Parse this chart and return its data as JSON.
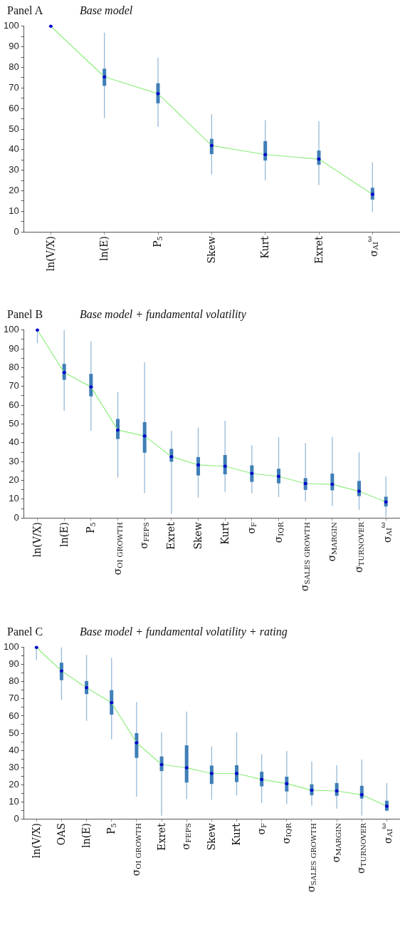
{
  "chart_data": [
    {
      "type": "box",
      "title": "Panel A",
      "subtitle": "Base model",
      "categories": [
        "ln(V/X)",
        "ln(E)",
        "P$_{5}$",
        "Skew",
        "Kurt",
        "Exret",
        "σ$_{AI}$$^{ω}$"
      ],
      "color": "#3f7fb7",
      "boxes": [
        {
          "low": 100,
          "q1": 100,
          "median": 100,
          "q3": 100,
          "high": 100
        },
        {
          "low": 55.4,
          "q1": 71.2,
          "median": 75.4,
          "q3": 79.2,
          "high": 96.9
        },
        {
          "low": 51.1,
          "q1": 62.7,
          "median": 67.2,
          "q3": 72.1,
          "high": 84.8
        },
        {
          "low": 27.9,
          "q1": 38.0,
          "median": 42.0,
          "q3": 45.1,
          "high": 57.2
        },
        {
          "low": 25.0,
          "q1": 34.9,
          "median": 37.6,
          "q3": 44.0,
          "high": 54.3
        },
        {
          "low": 22.8,
          "q1": 32.8,
          "median": 35.4,
          "q3": 39.4,
          "high": 53.8
        },
        {
          "low": 9.7,
          "q1": 15.9,
          "median": 18.3,
          "q3": 21.3,
          "high": 33.9
        }
      ],
      "series": [
        {
          "type": "line",
          "color": "#90ee80",
          "values": [
            100,
            75.4,
            67.2,
            42.0,
            37.6,
            35.4,
            18.3
          ]
        }
      ],
      "ylim": [
        0,
        100
      ],
      "yticks": [
        0,
        {
          "value": 5,
          "label": null
        },
        10,
        {
          "value": 15,
          "label": null
        },
        20,
        {
          "value": 25,
          "label": null
        },
        30,
        {
          "value": 35,
          "label": null
        },
        40,
        {
          "value": 45,
          "label": null
        },
        50,
        {
          "value": 55,
          "label": null
        },
        60,
        {
          "value": 65,
          "label": null
        },
        70,
        {
          "value": 75,
          "label": null
        },
        80,
        {
          "value": 85,
          "label": null
        },
        90,
        {
          "value": 95,
          "label": null
        },
        100
      ],
      "grid": false,
      "legend": false
    },
    {
      "type": "box",
      "title": "Panel B",
      "subtitle": "Base model + fundamental volatility",
      "categories": [
        "ln(V/X)",
        "ln(E)",
        "P$_{5}$",
        "σ$_{OI GROWTH}$",
        "σ$_{FEPS}$",
        "Exret",
        "Skew",
        "Kurt",
        "σ$_{F}$",
        "σ$_{IQR}$",
        "σ$_{SALES GROWTH}$",
        "σ$_{MARGIN}$",
        "σ$_{TURNOVER}$",
        "σ$_{AI}$$^{ω}$"
      ],
      "color": "#3f7fb7",
      "boxes": [
        {
          "low": 93.0,
          "q1": 100,
          "median": 100,
          "q3": 100,
          "high": 100
        },
        {
          "low": 56.9,
          "q1": 73.7,
          "median": 77.4,
          "q3": 81.8,
          "high": 100
        },
        {
          "low": 46.4,
          "q1": 64.9,
          "median": 69.7,
          "q3": 76.5,
          "high": 93.9
        },
        {
          "low": 21.5,
          "q1": 42.2,
          "median": 46.8,
          "q3": 52.5,
          "high": 66.9
        },
        {
          "low": 13.3,
          "q1": 34.9,
          "median": 43.6,
          "q3": 50.8,
          "high": 82.8
        },
        {
          "low": 2.1,
          "q1": 30.1,
          "median": 32.6,
          "q3": 36.6,
          "high": 46.4
        },
        {
          "low": 10.9,
          "q1": 22.8,
          "median": 28.2,
          "q3": 32.2,
          "high": 48.1
        },
        {
          "low": 13.8,
          "q1": 23.4,
          "median": 27.5,
          "q3": 33.3,
          "high": 51.7
        },
        {
          "low": 13.1,
          "q1": 19.4,
          "median": 23.7,
          "q3": 27.8,
          "high": 38.7
        },
        {
          "low": 11.1,
          "q1": 18.6,
          "median": 22.1,
          "q3": 26.0,
          "high": 42.9
        },
        {
          "low": 8.7,
          "q1": 15.1,
          "median": 18.3,
          "q3": 21.0,
          "high": 39.8
        },
        {
          "low": 6.3,
          "q1": 14.9,
          "median": 17.9,
          "q3": 23.4,
          "high": 43.1
        },
        {
          "low": 4.4,
          "q1": 11.8,
          "median": 14.2,
          "q3": 19.5,
          "high": 34.9
        },
        {
          "low": 0.5,
          "q1": 6.3,
          "median": 8.5,
          "q3": 11.1,
          "high": 22.0
        }
      ],
      "series": [
        {
          "type": "line",
          "color": "#90ee80",
          "values": [
            100,
            77.4,
            69.7,
            46.8,
            43.6,
            32.6,
            28.2,
            27.5,
            23.7,
            22.1,
            18.3,
            17.9,
            14.2,
            8.5
          ]
        }
      ],
      "ylim": [
        0,
        100
      ],
      "yticks": [
        0,
        {
          "value": 5,
          "label": null
        },
        10,
        {
          "value": 15,
          "label": null
        },
        20,
        {
          "value": 25,
          "label": null
        },
        30,
        {
          "value": 35,
          "label": null
        },
        40,
        {
          "value": 45,
          "label": null
        },
        50,
        {
          "value": 55,
          "label": null
        },
        60,
        {
          "value": 65,
          "label": null
        },
        70,
        {
          "value": 75,
          "label": null
        },
        80,
        {
          "value": 85,
          "label": null
        },
        90,
        {
          "value": 95,
          "label": null
        },
        100
      ],
      "grid": false,
      "legend": false
    },
    {
      "type": "box",
      "title": "Panel C",
      "subtitle": "Base model + fundamental volatility + rating",
      "categories": [
        "ln(V/X)",
        "OAS",
        "ln(E)",
        "P$_{5}$",
        "σ$_{OI GROWTH}$",
        "Exret",
        "σ$_{FEPS}$",
        "Skew",
        "Kurt",
        "σ$_{F}$",
        "σ$_{IQR}$",
        "σ$_{SALES GROWTH}$",
        "σ$_{MARGIN}$",
        "σ$_{TURNOVER}$",
        "σ$_{AI}$$^{ω}$"
      ],
      "color": "#3f7fb7",
      "boxes": [
        {
          "low": 92.6,
          "q1": 100,
          "median": 100,
          "q3": 100,
          "high": 100
        },
        {
          "low": 69.3,
          "q1": 81.1,
          "median": 86.3,
          "q3": 90.9,
          "high": 100
        },
        {
          "low": 57.2,
          "q1": 73.0,
          "median": 76.5,
          "q3": 80.2,
          "high": 95.7
        },
        {
          "low": 46.5,
          "q1": 61.0,
          "median": 67.8,
          "q3": 74.9,
          "high": 94.0
        },
        {
          "low": 13.0,
          "q1": 35.8,
          "median": 44.4,
          "q3": 49.8,
          "high": 68.2
        },
        {
          "low": 1.9,
          "q1": 28.1,
          "median": 31.7,
          "q3": 36.2,
          "high": 50.5
        },
        {
          "low": 11.5,
          "q1": 21.4,
          "median": 29.8,
          "q3": 42.7,
          "high": 62.6
        },
        {
          "low": 11.2,
          "q1": 20.6,
          "median": 26.5,
          "q3": 30.9,
          "high": 42.3
        },
        {
          "low": 13.7,
          "q1": 21.7,
          "median": 26.5,
          "q3": 31.1,
          "high": 50.5
        },
        {
          "low": 9.3,
          "q1": 19.2,
          "median": 23.0,
          "q3": 27.3,
          "high": 37.7
        },
        {
          "low": 8.6,
          "q1": 16.2,
          "median": 20.6,
          "q3": 24.4,
          "high": 39.6
        },
        {
          "low": 7.7,
          "q1": 14.0,
          "median": 16.7,
          "q3": 20.0,
          "high": 33.5
        },
        {
          "low": 6.0,
          "q1": 13.7,
          "median": 16.3,
          "q3": 20.7,
          "high": 31.3
        },
        {
          "low": 2.0,
          "q1": 12.1,
          "median": 14.1,
          "q3": 19.1,
          "high": 34.6
        },
        {
          "low": 4.5,
          "q1": 5.0,
          "median": 7.4,
          "q3": 10.4,
          "high": 20.9
        }
      ],
      "series": [
        {
          "type": "line",
          "color": "#90ee80",
          "values": [
            100,
            86.3,
            76.5,
            67.8,
            44.4,
            31.7,
            29.8,
            26.5,
            26.5,
            23.0,
            20.6,
            16.7,
            16.3,
            14.1,
            7.4
          ]
        }
      ],
      "ylim": [
        0,
        100
      ],
      "yticks": [
        0,
        {
          "value": 5,
          "label": null
        },
        10,
        {
          "value": 15,
          "label": null
        },
        20,
        {
          "value": 25,
          "label": null
        },
        30,
        {
          "value": 35,
          "label": null
        },
        40,
        {
          "value": 45,
          "label": null
        },
        50,
        {
          "value": 55,
          "label": null
        },
        60,
        {
          "value": 65,
          "label": null
        },
        70,
        {
          "value": 75,
          "label": null
        },
        80,
        {
          "value": 85,
          "label": null
        },
        90,
        {
          "value": 95,
          "label": null
        },
        100
      ],
      "grid": false,
      "legend": false
    }
  ]
}
